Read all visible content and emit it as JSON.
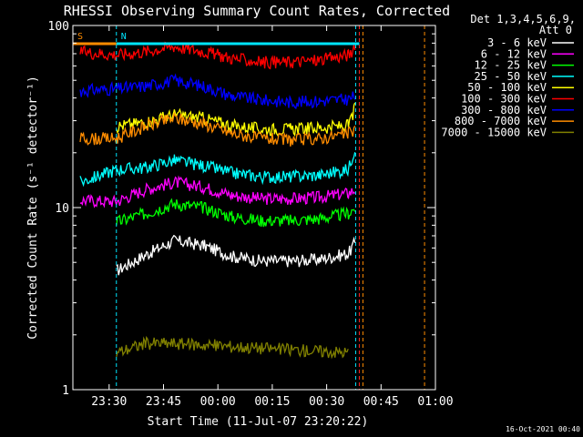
{
  "chart_data": {
    "type": "line",
    "title": "RHESSI Observing Summary Count Rates, Corrected",
    "xlabel": "Start Time (11-Jul-07 23:20:22)",
    "ylabel": "Corrected Count Rate (s⁻¹ detector⁻¹)",
    "y_scale": "log",
    "ylim": [
      1,
      100
    ],
    "xlim": [
      "23:20",
      "01:00"
    ],
    "x_tick_labels": [
      "23:30",
      "23:45",
      "00:00",
      "00:15",
      "00:30",
      "00:45",
      "01:00"
    ],
    "y_tick_labels": [
      "1",
      "10",
      "100"
    ],
    "grid": false,
    "legend_placement": "top-right",
    "legend_header": [
      "Det 1,3,4,5,6,9,",
      "Att 0"
    ],
    "footer_date": "16-Oct-2021 00:40",
    "flags": [
      {
        "label": "S",
        "color": "#ff8c00",
        "start": "23:20",
        "end": "23:32"
      },
      {
        "label": "N",
        "color": "#00e5ff",
        "start": "23:32",
        "end": "00:39"
      }
    ],
    "vertical_markers": [
      {
        "time": "23:20",
        "color": "#00e5ff"
      },
      {
        "time": "23:32",
        "color": "#00e5ff"
      },
      {
        "time": "00:38",
        "color": "#00e5ff"
      },
      {
        "time": "00:39",
        "color": "#ff2020"
      },
      {
        "time": "00:40",
        "color": "#ff8c00"
      },
      {
        "time": "00:57",
        "color": "#ff8c00"
      }
    ],
    "x": [
      "23:22",
      "23:32",
      "23:40",
      "23:48",
      "23:56",
      "00:04",
      "00:12",
      "00:20",
      "00:28",
      "00:36",
      "00:38"
    ],
    "series": [
      {
        "name": "3 - 6 keV",
        "color": "#ffffff",
        "values": [
          null,
          4.5,
          5.5,
          6.6,
          6.2,
          5.4,
          5.1,
          5.1,
          5.2,
          5.6,
          6.5
        ]
      },
      {
        "name": "6 - 12 keV",
        "color": "#ff00ff",
        "values": [
          11,
          10.8,
          12.6,
          13.8,
          13,
          11.7,
          11.2,
          11.2,
          11.4,
          12,
          12.6
        ]
      },
      {
        "name": "12 - 25 keV",
        "color": "#00ff00",
        "values": [
          null,
          8.3,
          9.3,
          10.5,
          10,
          8.9,
          8.5,
          8.5,
          8.7,
          9.3,
          10
        ]
      },
      {
        "name": "25 - 50 keV",
        "color": "#00ffff",
        "values": [
          13.8,
          16.2,
          16.6,
          18.2,
          17,
          15.5,
          14.8,
          14.8,
          15.1,
          16.2,
          22
        ]
      },
      {
        "name": "50 - 100 keV",
        "color": "#ffff00",
        "values": [
          null,
          28,
          29.5,
          32.4,
          31,
          28.2,
          27,
          27,
          27.5,
          28.2,
          36
        ]
      },
      {
        "name": "100 - 300 keV",
        "color": "#ff0000",
        "values": [
          72,
          69,
          72,
          77,
          72,
          66,
          63,
          63,
          64.6,
          69,
          74
        ]
      },
      {
        "name": "300 - 800 keV",
        "color": "#0000ff",
        "values": [
          44,
          45,
          46.5,
          50,
          46.5,
          41,
          39,
          38,
          38.5,
          39.5,
          41
        ]
      },
      {
        "name": "800 - 7000 keV",
        "color": "#ff8c00",
        "values": [
          24,
          24,
          28,
          31,
          29,
          25.5,
          24,
          23.5,
          24,
          25.5,
          27
        ]
      },
      {
        "name": "7000 - 15000 keV",
        "color": "#808000",
        "values": [
          null,
          1.6,
          1.8,
          1.8,
          null,
          null,
          null,
          null,
          null,
          1.6,
          null
        ]
      }
    ]
  }
}
